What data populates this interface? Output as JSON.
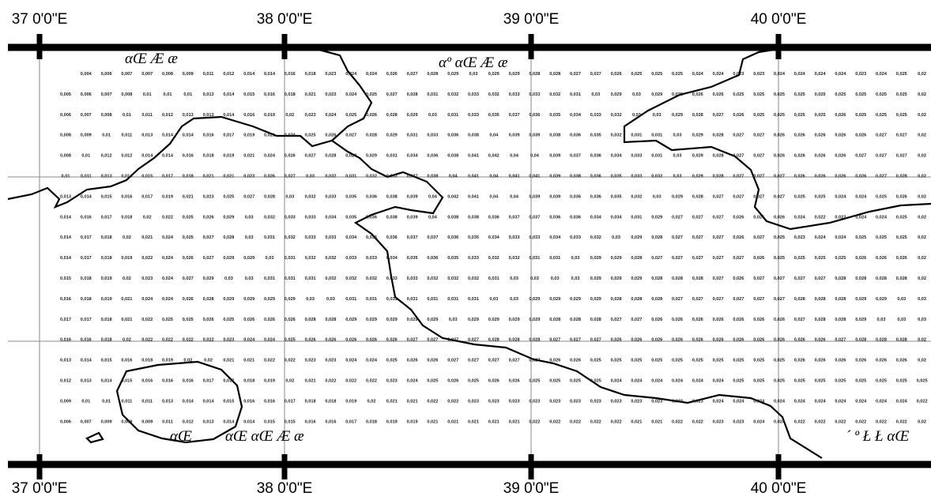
{
  "axes": {
    "top_labels": [
      "37 0'0\"E",
      "38 0'0\"E",
      "39 0'0\"E",
      "40 0'0\"E"
    ],
    "bottom_labels": [
      "37 0'0\"E",
      "38 0'0\"E",
      "39 0'0\"E",
      "40 0'0\"E"
    ]
  },
  "place_labels": [
    "αŒ  Æ  æ",
    "αº  αŒ  Æ  æ",
    "αŒ",
    "αŒ  αŒ  Æ  æ",
    "´ º  Ł  Ł  αŒ"
  ],
  "grid_values": [
    [
      "0,004",
      "0,006",
      "0,007",
      "0,007",
      "0,008",
      "0,009",
      "0,011",
      "0,012",
      "0,014",
      "0,014",
      "0,016",
      "0,018",
      "0,023",
      "0,024",
      "0,024",
      "0,026",
      "0,027",
      "0,028",
      "0,029",
      "0,03",
      "0,029",
      "0,029",
      "0,028",
      "0,028",
      "0,027",
      "0,027",
      "0,026",
      "0,025",
      "0,025",
      "0,025",
      "0,024",
      "0,024",
      "0,023",
      "0,023",
      "0,024",
      "0,024",
      "0,024",
      "0,024",
      "0,023",
      "0,024",
      "0,025",
      "0,02"
    ],
    [
      "0,005",
      "0,006",
      "0,007",
      "0,008",
      "0,01",
      "0,01",
      "0,01",
      "0,013",
      "0,014",
      "0,015",
      "0,016",
      "0,018",
      "0,021",
      "0,023",
      "0,024",
      "0,025",
      "0,027",
      "0,028",
      "0,031",
      "0,032",
      "0,033",
      "0,032",
      "0,033",
      "0,033",
      "0,032",
      "0,031",
      "0,03",
      "0,029",
      "0,03",
      "0,029",
      "0,028",
      "0,026",
      "0,026",
      "0,025",
      "0,025",
      "0,025",
      "0,025",
      "0,025",
      "0,025",
      "0,025",
      "0,025",
      "0,025",
      "0,02"
    ],
    [
      "0,006",
      "0,007",
      "0,008",
      "0,01",
      "0,011",
      "0,012",
      "0,013",
      "0,013",
      "0,014",
      "0,016",
      "0,019",
      "0,02",
      "0,023",
      "0,024",
      "0,025",
      "0,026",
      "0,028",
      "0,029",
      "0,03",
      "0,031",
      "0,033",
      "0,035",
      "0,037",
      "0,036",
      "0,035",
      "0,034",
      "0,033",
      "0,032",
      "0,03",
      "0,03",
      "0,029",
      "0,028",
      "0,027",
      "0,026",
      "0,025",
      "0,025",
      "0,025",
      "0,025",
      "0,026",
      "0,025",
      "0,025",
      "0,025",
      "0,02"
    ],
    [
      "0,008",
      "0,009",
      "0,01",
      "0,011",
      "0,013",
      "0,014",
      "0,014",
      "0,016",
      "0,017",
      "0,019",
      "0,021",
      "0,024",
      "0,025",
      "0,026",
      "0,027",
      "0,028",
      "0,029",
      "0,031",
      "0,033",
      "0,036",
      "0,038",
      "0,04",
      "0,039",
      "0,039",
      "0,038",
      "0,036",
      "0,035",
      "0,032",
      "0,031",
      "0,031",
      "0,03",
      "0,029",
      "0,028",
      "0,027",
      "0,027",
      "0,026",
      "0,026",
      "0,026",
      "0,026",
      "0,026",
      "0,027",
      "0,027",
      "0,02"
    ],
    [
      "0,008",
      "0,01",
      "0,012",
      "0,012",
      "0,014",
      "0,014",
      "0,016",
      "0,018",
      "0,019",
      "0,021",
      "0,024",
      "0,026",
      "0,027",
      "0,028",
      "0,029",
      "0,029",
      "0,031",
      "0,034",
      "0,036",
      "0,038",
      "0,041",
      "0,042",
      "0,04",
      "0,04",
      "0,039",
      "0,037",
      "0,036",
      "0,034",
      "0,033",
      "0,031",
      "0,03",
      "0,029",
      "0,028",
      "0,027",
      "0,027",
      "0,026",
      "0,026",
      "0,026",
      "0,026",
      "0,027",
      "0,027",
      "0,027",
      "0,02"
    ],
    [
      "0,01",
      "0,011",
      "0,013",
      "0,014",
      "0,015",
      "0,017",
      "0,018",
      "0,021",
      "0,021",
      "0,023",
      "0,026",
      "0,027",
      "0,03",
      "0,032",
      "0,031",
      "0,032",
      "0,033",
      "0,037",
      "0,038",
      "0,04",
      "0,041",
      "0,04",
      "0,041",
      "0,041",
      "0,039",
      "0,038",
      "0,036",
      "0,035",
      "0,033",
      "0,032",
      "0,03",
      "0,029",
      "0,028",
      "0,027",
      "0,027",
      "0,027",
      "0,026",
      "0,026",
      "0,026",
      "0,026",
      "0,027",
      "0,028",
      "0,02"
    ],
    [
      "0,013",
      "0,014",
      "0,015",
      "0,016",
      "0,017",
      "0,019",
      "0,021",
      "0,023",
      "0,025",
      "0,027",
      "0,028",
      "0,03",
      "0,032",
      "0,033",
      "0,035",
      "0,036",
      "0,038",
      "0,039",
      "0,04",
      "0,042",
      "0,041",
      "0,04",
      "0,04",
      "0,039",
      "0,039",
      "0,036",
      "0,036",
      "0,035",
      "0,032",
      "0,03",
      "0,029",
      "0,028",
      "0,027",
      "0,027",
      "0,027",
      "0,027",
      "0,025",
      "0,025",
      "0,024",
      "0,024",
      "0,025",
      "0,026",
      "0,02"
    ],
    [
      "0,014",
      "0,016",
      "0,017",
      "0,018",
      "0,02",
      "0,022",
      "0,025",
      "0,026",
      "0,029",
      "0,03",
      "0,032",
      "0,033",
      "0,033",
      "0,034",
      "0,035",
      "0,036",
      "0,038",
      "0,039",
      "0,04",
      "0,038",
      "0,038",
      "0,036",
      "0,037",
      "0,037",
      "0,036",
      "0,036",
      "0,034",
      "0,034",
      "0,031",
      "0,029",
      "0,027",
      "0,027",
      "0,027",
      "0,026",
      "0,026",
      "0,026",
      "0,024",
      "0,022",
      "0,022",
      "0,024",
      "0,024",
      "0,025",
      "0,02"
    ],
    [
      "0,014",
      "0,017",
      "0,018",
      "0,02",
      "0,021",
      "0,024",
      "0,025",
      "0,027",
      "0,028",
      "0,03",
      "0,031",
      "0,032",
      "0,033",
      "0,033",
      "0,034",
      "0,035",
      "0,036",
      "0,037",
      "0,037",
      "0,036",
      "0,035",
      "0,034",
      "0,033",
      "0,033",
      "0,034",
      "0,033",
      "0,032",
      "0,03",
      "0,029",
      "0,028",
      "0,027",
      "0,027",
      "0,027",
      "0,026",
      "0,027",
      "0,025",
      "0,023",
      "0,024",
      "0,024",
      "0,025",
      "0,025",
      "0,025",
      "0,02"
    ],
    [
      "0,014",
      "0,017",
      "0,018",
      "0,019",
      "0,022",
      "0,024",
      "0,026",
      "0,027",
      "0,029",
      "0,029",
      "0,03",
      "0,031",
      "0,032",
      "0,032",
      "0,033",
      "0,033",
      "0,034",
      "0,035",
      "0,036",
      "0,035",
      "0,033",
      "0,032",
      "0,032",
      "0,031",
      "0,031",
      "0,03",
      "0,029",
      "0,029",
      "0,028",
      "0,027",
      "0,027",
      "0,027",
      "0,027",
      "0,027",
      "0,026",
      "0,025",
      "0,025",
      "0,025",
      "0,025",
      "0,026",
      "0,026",
      "0,026",
      "0,02"
    ],
    [
      "0,015",
      "0,018",
      "0,019",
      "0,02",
      "0,023",
      "0,024",
      "0,027",
      "0,029",
      "0,03",
      "0,03",
      "0,031",
      "0,031",
      "0,031",
      "0,032",
      "0,032",
      "0,032",
      "0,033",
      "0,033",
      "0,032",
      "0,032",
      "0,032",
      "0,031",
      "0,03",
      "0,03",
      "0,03",
      "0,03",
      "0,029",
      "0,029",
      "0,029",
      "0,028",
      "0,028",
      "0,028",
      "0,027",
      "0,026",
      "0,027",
      "0,027",
      "0,027",
      "0,027",
      "0,028",
      "0,028",
      "0,028",
      "0,028",
      "0,02"
    ],
    [
      "0,016",
      "0,018",
      "0,019",
      "0,021",
      "0,024",
      "0,024",
      "0,026",
      "0,028",
      "0,029",
      "0,029",
      "0,029",
      "0,029",
      "0,03",
      "0,03",
      "0,031",
      "0,031",
      "0,031",
      "0,031",
      "0,031",
      "0,031",
      "0,031",
      "0,03",
      "0,03",
      "0,029",
      "0,029",
      "0,029",
      "0,029",
      "0,028",
      "0,028",
      "0,028",
      "0,027",
      "0,027",
      "0,027",
      "0,027",
      "0,027",
      "0,027",
      "0,028",
      "0,028",
      "0,028",
      "0,029",
      "0,029",
      "0,03",
      "0,03"
    ],
    [
      "0,017",
      "0,017",
      "0,018",
      "0,021",
      "0,022",
      "0,025",
      "0,025",
      "0,026",
      "0,025",
      "0,026",
      "0,026",
      "0,026",
      "0,028",
      "0,028",
      "0,029",
      "0,029",
      "0,029",
      "0,029",
      "0,029",
      "0,03",
      "0,029",
      "0,029",
      "0,029",
      "0,029",
      "0,028",
      "0,028",
      "0,028",
      "0,027",
      "0,027",
      "0,026",
      "0,026",
      "0,026",
      "0,026",
      "0,026",
      "0,026",
      "0,026",
      "0,027",
      "0,028",
      "0,028",
      "0,029",
      "0,03",
      "0,03",
      "0,03"
    ],
    [
      "0,016",
      "0,016",
      "0,018",
      "0,02",
      "0,022",
      "0,022",
      "0,022",
      "0,022",
      "0,023",
      "0,024",
      "0,024",
      "0,025",
      "0,026",
      "0,026",
      "0,026",
      "0,026",
      "0,026",
      "0,027",
      "0,027",
      "0,027",
      "0,027",
      "0,028",
      "0,028",
      "0,028",
      "0,027",
      "0,027",
      "0,027",
      "0,026",
      "0,026",
      "0,026",
      "0,026",
      "0,026",
      "0,026",
      "0,026",
      "0,026",
      "0,026",
      "0,026",
      "0,026",
      "0,027",
      "0,028",
      "0,028",
      "0,028",
      "0,02"
    ],
    [
      "0,013",
      "0,014",
      "0,015",
      "0,016",
      "0,018",
      "0,019",
      "0,02",
      "0,02",
      "0,021",
      "0,021",
      "0,022",
      "0,022",
      "0,023",
      "0,023",
      "0,024",
      "0,024",
      "0,025",
      "0,026",
      "0,026",
      "0,027",
      "0,027",
      "0,027",
      "0,027",
      "0,027",
      "0,026",
      "0,026",
      "0,025",
      "0,025",
      "0,025",
      "0,025",
      "0,025",
      "0,025",
      "0,025",
      "0,025",
      "0,025",
      "0,025",
      "0,026",
      "0,026",
      "0,026",
      "0,026",
      "0,026",
      "0,026",
      "0,02"
    ],
    [
      "0,012",
      "0,013",
      "0,014",
      "0,015",
      "0,016",
      "0,016",
      "0,016",
      "0,017",
      "0,017",
      "0,018",
      "0,019",
      "0,02",
      "0,021",
      "0,022",
      "0,022",
      "0,022",
      "0,023",
      "0,024",
      "0,025",
      "0,026",
      "0,025",
      "0,026",
      "0,026",
      "0,025",
      "0,025",
      "0,025",
      "0,025",
      "0,024",
      "0,024",
      "0,024",
      "0,024",
      "0,024",
      "0,024",
      "0,025",
      "0,025",
      "0,025",
      "0,025",
      "0,025",
      "0,025",
      "0,025",
      "0,025",
      "0,025",
      "0,025"
    ],
    [
      "0,009",
      "0,01",
      "0,01",
      "0,011",
      "0,011",
      "0,013",
      "0,014",
      "0,014",
      "0,015",
      "0,016",
      "0,016",
      "0,017",
      "0,018",
      "0,018",
      "0,019",
      "0,02",
      "0,021",
      "0,021",
      "0,022",
      "0,022",
      "0,023",
      "0,023",
      "0,023",
      "0,023",
      "0,023",
      "0,023",
      "0,023",
      "0,023",
      "0,023",
      "0,023",
      "0,023",
      "0,023",
      "0,024",
      "0,024",
      "0,024",
      "0,024",
      "0,024",
      "0,024",
      "0,024",
      "0,024",
      "0,024",
      "0,024",
      "0,022"
    ],
    [
      "0,006",
      "0,007",
      "0,009",
      "0,009",
      "0,009",
      "0,011",
      "0,012",
      "0,013",
      "0,014",
      "0,014",
      "0,015",
      "0,015",
      "0,016",
      "0,016",
      "0,017",
      "0,018",
      "0,019",
      "0,019",
      "0,021",
      "0,021",
      "0,021",
      "0,021",
      "0,021",
      "0,022",
      "0,022",
      "0,022",
      "0,022",
      "0,022",
      "0,021",
      "0,021",
      "0,022",
      "0,022",
      "0,023",
      "0,023",
      "0,024",
      "0,024",
      "0,022",
      "0,022",
      "0,022",
      "0,022",
      "0,022",
      "0,022",
      "0,02"
    ]
  ]
}
